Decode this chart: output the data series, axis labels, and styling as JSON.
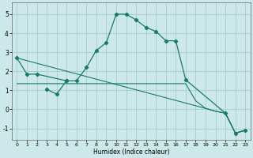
{
  "xlabel": "Humidex (Indice chaleur)",
  "xlim": [
    -0.5,
    23.5
  ],
  "ylim": [
    -1.6,
    5.6
  ],
  "yticks": [
    -1,
    0,
    1,
    2,
    3,
    4,
    5
  ],
  "xticks": [
    0,
    1,
    2,
    3,
    4,
    5,
    6,
    7,
    8,
    9,
    10,
    11,
    12,
    13,
    14,
    15,
    16,
    17,
    18,
    19,
    20,
    21,
    22,
    23
  ],
  "background_color": "#cce8e8",
  "grid_color": "#aacccc",
  "line_color": "#1a7a6a",
  "curve1_x": [
    0,
    1,
    2,
    5,
    6,
    7,
    8,
    9,
    10,
    11,
    12,
    13,
    14,
    15,
    16,
    17,
    21,
    22,
    23
  ],
  "curve1_y": [
    2.7,
    1.85,
    1.85,
    1.5,
    1.5,
    2.2,
    3.1,
    3.5,
    5.0,
    5.0,
    4.7,
    4.3,
    4.1,
    3.6,
    3.6,
    1.55,
    -0.2,
    -1.25,
    -1.1
  ],
  "curve2_x": [
    3,
    4,
    5
  ],
  "curve2_y": [
    1.05,
    0.8,
    1.5
  ],
  "diag_x": [
    0,
    19,
    20,
    21,
    22,
    23
  ],
  "diag_y": [
    2.7,
    0.05,
    -0.1,
    -0.2,
    -1.25,
    -1.1
  ],
  "flat_x": [
    0,
    17,
    18,
    19,
    20,
    21,
    22,
    23
  ],
  "flat_y": [
    1.35,
    1.35,
    0.45,
    0.05,
    -0.1,
    -0.2,
    -1.25,
    -1.1
  ]
}
